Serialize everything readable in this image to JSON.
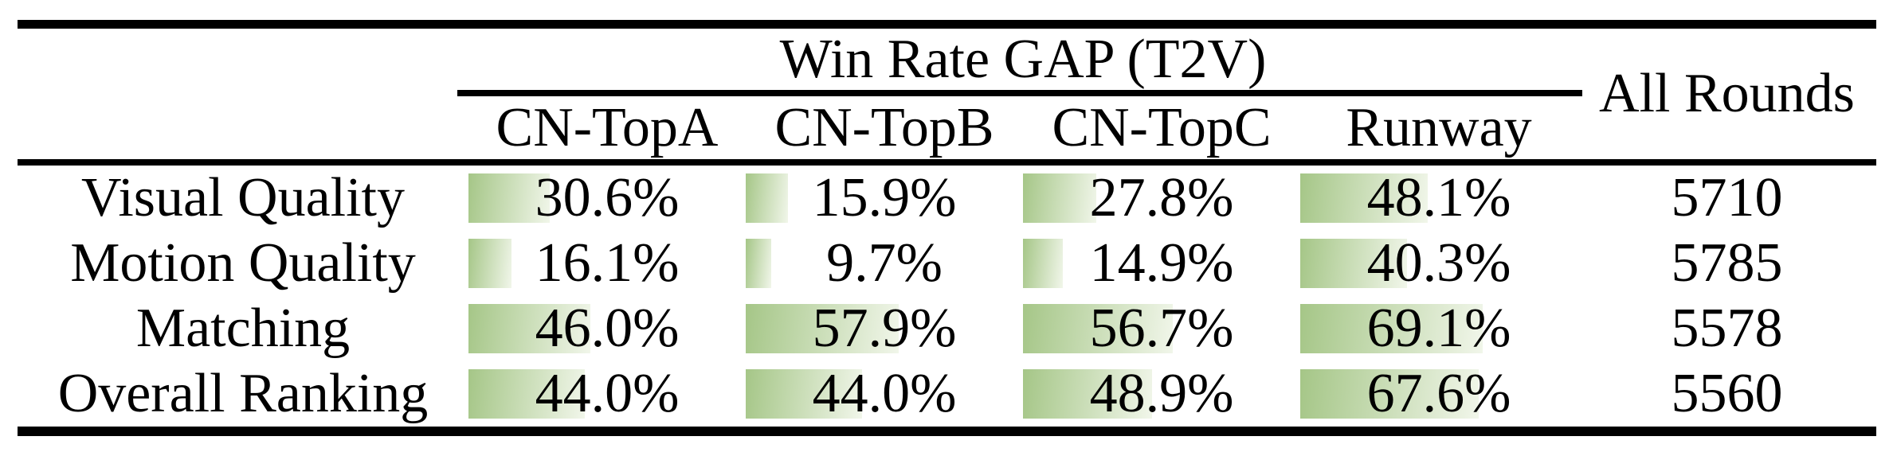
{
  "table": {
    "group_header": "Win Rate GAP (T2V)",
    "column_headers": [
      "CN-TopA",
      "CN-TopB",
      "CN-TopC",
      "Runway"
    ],
    "all_rounds_header": "All Rounds",
    "rows": [
      {
        "label": "Visual Quality",
        "cells": [
          {
            "text": "30.6%",
            "pct": 30.6
          },
          {
            "text": "15.9%",
            "pct": 15.9
          },
          {
            "text": "27.8%",
            "pct": 27.8
          },
          {
            "text": "48.1%",
            "pct": 48.1
          }
        ],
        "rounds": "5710"
      },
      {
        "label": "Motion Quality",
        "cells": [
          {
            "text": "16.1%",
            "pct": 16.1
          },
          {
            "text": "9.7%",
            "pct": 9.7
          },
          {
            "text": "14.9%",
            "pct": 14.9
          },
          {
            "text": "40.3%",
            "pct": 40.3
          }
        ],
        "rounds": "5785"
      },
      {
        "label": "Matching",
        "cells": [
          {
            "text": "46.0%",
            "pct": 46.0
          },
          {
            "text": "57.9%",
            "pct": 57.9
          },
          {
            "text": "56.7%",
            "pct": 56.7
          },
          {
            "text": "69.1%",
            "pct": 69.1
          }
        ],
        "rounds": "5578"
      },
      {
        "label": "Overall Ranking",
        "cells": [
          {
            "text": "44.0%",
            "pct": 44.0
          },
          {
            "text": "44.0%",
            "pct": 44.0
          },
          {
            "text": "48.9%",
            "pct": 48.9
          },
          {
            "text": "67.6%",
            "pct": 67.6
          }
        ],
        "rounds": "5560"
      }
    ]
  },
  "colors": {
    "bar_gradient_start": "#a5c687",
    "bar_gradient_end": "#f1f6ea",
    "rule": "#000000",
    "text": "#000000",
    "background": "#ffffff"
  },
  "chart_data": {
    "type": "table",
    "title": "Win Rate GAP (T2V)",
    "columns": [
      "CN-TopA",
      "CN-TopB",
      "CN-TopC",
      "Runway",
      "All Rounds"
    ],
    "row_labels": [
      "Visual Quality",
      "Motion Quality",
      "Matching",
      "Overall Ranking"
    ],
    "win_rate_gap_percent": {
      "Visual Quality": [
        30.6,
        15.9,
        27.8,
        48.1
      ],
      "Motion Quality": [
        16.1,
        9.7,
        14.9,
        40.3
      ],
      "Matching": [
        46.0,
        57.9,
        56.7,
        69.1
      ],
      "Overall Ranking": [
        44.0,
        44.0,
        48.9,
        67.6
      ]
    },
    "all_rounds": [
      5710,
      5785,
      5578,
      5560
    ],
    "bar_style": "green gradient data bars, width proportional to percent (100% = full cell width)"
  }
}
